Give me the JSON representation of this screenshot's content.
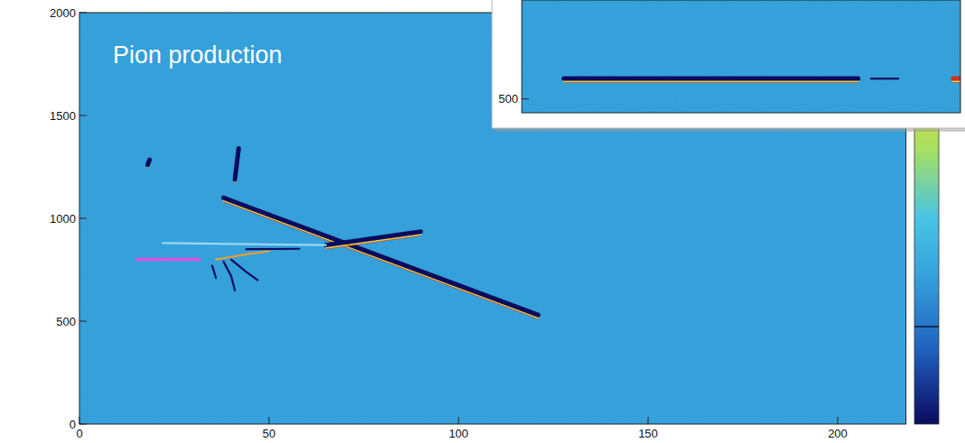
{
  "chart_data": [
    {
      "type": "line",
      "title": "Pion production",
      "xlim": [
        0,
        218
      ],
      "ylim": [
        0,
        2000
      ],
      "xticks": [
        0,
        50,
        100,
        150,
        200
      ],
      "yticks": [
        0,
        500,
        1000,
        1500,
        2000
      ],
      "series": [
        {
          "x": [
            38,
            121
          ],
          "values": [
            1100,
            530
          ],
          "color": "#0b0b5e",
          "line_style": "thick"
        },
        {
          "x": [
            65,
            90
          ],
          "values": [
            870,
            935
          ],
          "color": "#0b0b5e",
          "line_style": "thick"
        },
        {
          "x": [
            22,
            65
          ],
          "values": [
            880,
            870
          ],
          "color": "#9ad6f0",
          "line_style": "thin"
        },
        {
          "x": [
            41,
            42
          ],
          "values": [
            1190,
            1340
          ],
          "color": "#0b0b5e",
          "line_style": "thick"
        },
        {
          "x": [
            18,
            18.5
          ],
          "values": [
            1260,
            1285
          ],
          "color": "#0b0b5e",
          "line_style": "thick"
        },
        {
          "x": [
            36,
            44,
            50
          ],
          "values": [
            800,
            825,
            840
          ],
          "color": "#e8a030",
          "line_style": "thin"
        },
        {
          "x": [
            38,
            40,
            41
          ],
          "values": [
            790,
            720,
            650
          ],
          "color": "#0b0b5e",
          "line_style": "thin"
        },
        {
          "x": [
            40,
            44,
            47
          ],
          "values": [
            800,
            740,
            700
          ],
          "color": "#0b0b5e",
          "line_style": "thin"
        },
        {
          "x": [
            35,
            36
          ],
          "values": [
            770,
            710
          ],
          "color": "#0b0b5e",
          "line_style": "thin"
        },
        {
          "x": [
            44,
            58
          ],
          "values": [
            850,
            852
          ],
          "color": "#0b0b5e",
          "line_style": "thin"
        },
        {
          "x": [
            15,
            32
          ],
          "values": [
            800,
            800
          ],
          "color": "#e050e0",
          "line_style": "beam"
        }
      ]
    },
    {
      "type": "line",
      "xlim": [
        0,
        240
      ],
      "ylim": [
        430,
        1000
      ],
      "yticks": [
        500
      ],
      "tick_labels": "y",
      "series": [
        {
          "x": [
            23,
            184
          ],
          "values": [
            603,
            603
          ],
          "color": "#0b0b5e",
          "line_style": "thick"
        },
        {
          "x": [
            191,
            206
          ],
          "values": [
            603,
            603
          ],
          "color": "#0b0b5e",
          "line_style": "thin"
        },
        {
          "x": [
            236,
            240
          ],
          "values": [
            603,
            603
          ],
          "color": "#d03020",
          "line_style": "thick"
        }
      ]
    }
  ]
}
